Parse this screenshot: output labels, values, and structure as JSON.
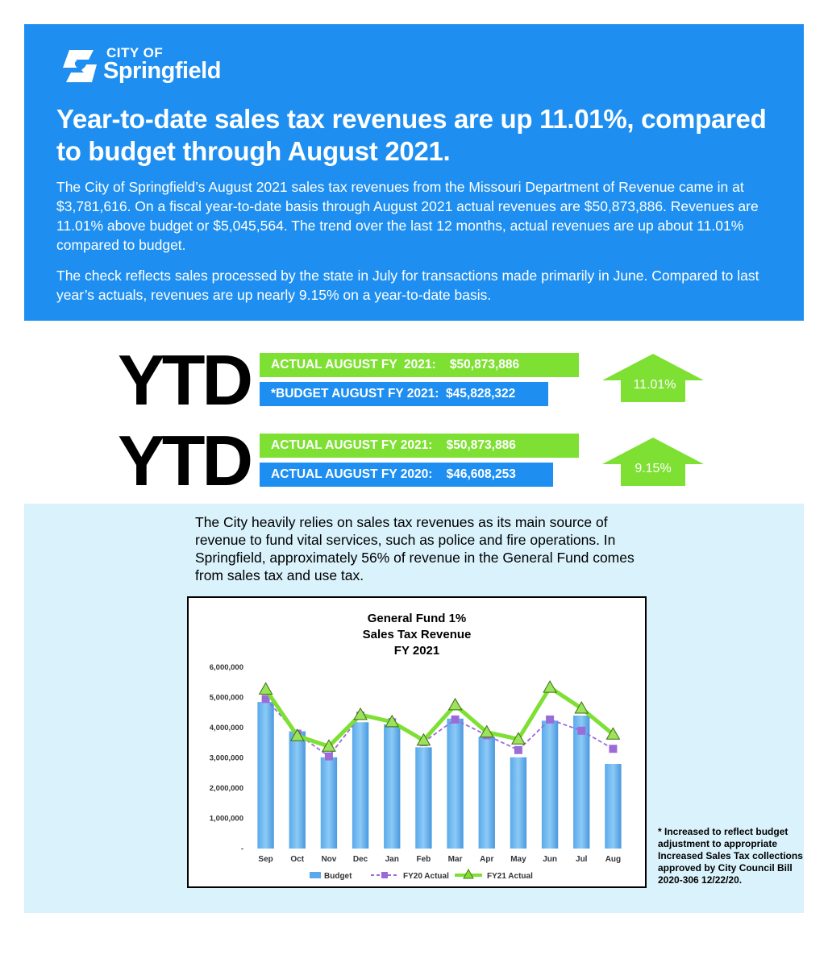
{
  "brand": {
    "city_of": "CITY OF",
    "name": "Springfield"
  },
  "headline": "Year-to-date sales tax revenues are up 11.01%, compared to budget through August 2021.",
  "paragraph1": "The City of Springfield’s August 2021 sales tax revenues from the Missouri Department of Revenue came in at $3,781,616. On a fiscal year-to-date basis through August 2021 actual revenues are $50,873,886. Revenues are 11.01% above budget or $5,045,564. The trend over the last 12 months, actual revenues are up about 11.01% compared to budget.",
  "paragraph2": "The check reflects sales processed by the state in July for transactions made primarily in June. Compared to last year’s actuals, revenues are up nearly 9.15% on a year-to-date basis.",
  "ytd_rows": [
    {
      "label": "YTD",
      "line1": "ACTUAL AUGUST FY  2021:    $50,873,886",
      "line2": "*BUDGET AUGUST FY 2021:  $45,828,322",
      "change": "11.01%"
    },
    {
      "label": "YTD",
      "line1": "ACTUAL AUGUST FY 2021:    $50,873,886",
      "line2": "ACTUAL AUGUST FY 2020:    $46,608,253",
      "change": "9.15%"
    }
  ],
  "intro": "The City heavily relies on sales tax revenues as its main source of revenue to fund vital services, such as police and fire operations. In Springfield, approximately 56% of revenue in the General Fund comes from sales tax and use tax.",
  "footnote": "* Increased to reflect budget adjustment to appropriate Increased Sales Tax collections approved by City Council Bill 2020-306 12/22/20.",
  "colors": {
    "banner": "#1e8ff0",
    "green": "#7ee033",
    "panel": "#d9f2fb",
    "purple": "#9b6cd8"
  },
  "chart_data": {
    "type": "bar",
    "title_lines": [
      "General Fund 1%",
      "Sales Tax Revenue",
      "FY 2021"
    ],
    "categories": [
      "Sep",
      "Oct",
      "Nov",
      "Dec",
      "Jan",
      "Feb",
      "Mar",
      "Apr",
      "May",
      "Jun",
      "Jul",
      "Aug"
    ],
    "ylim": [
      0,
      6000000
    ],
    "yticks": [
      0,
      1000000,
      2000000,
      3000000,
      4000000,
      5000000,
      6000000
    ],
    "ytick_labels": [
      "-",
      "1,000,000",
      "2,000,000",
      "3,000,000",
      "4,000,000",
      "5,000,000",
      "6,000,000"
    ],
    "series": [
      {
        "name": "Budget",
        "kind": "bar",
        "values": [
          4850000,
          3880000,
          3020000,
          4180000,
          4110000,
          3350000,
          4300000,
          3700000,
          3020000,
          4230000,
          4400000,
          2800000
        ]
      },
      {
        "name": "FY20 Actual",
        "kind": "line-dashed",
        "values": [
          4950000,
          3800000,
          3050000,
          4400000,
          4180000,
          3520000,
          4270000,
          3750000,
          3260000,
          4270000,
          3900000,
          3300000
        ]
      },
      {
        "name": "FY21 Actual",
        "kind": "line",
        "values": [
          5270000,
          3730000,
          3380000,
          4430000,
          4190000,
          3580000,
          4750000,
          3850000,
          3620000,
          5330000,
          4640000,
          3780000
        ]
      }
    ],
    "legend": [
      "Budget",
      "FY20 Actual",
      "FY21 Actual"
    ],
    "legend_position": "bottom"
  }
}
